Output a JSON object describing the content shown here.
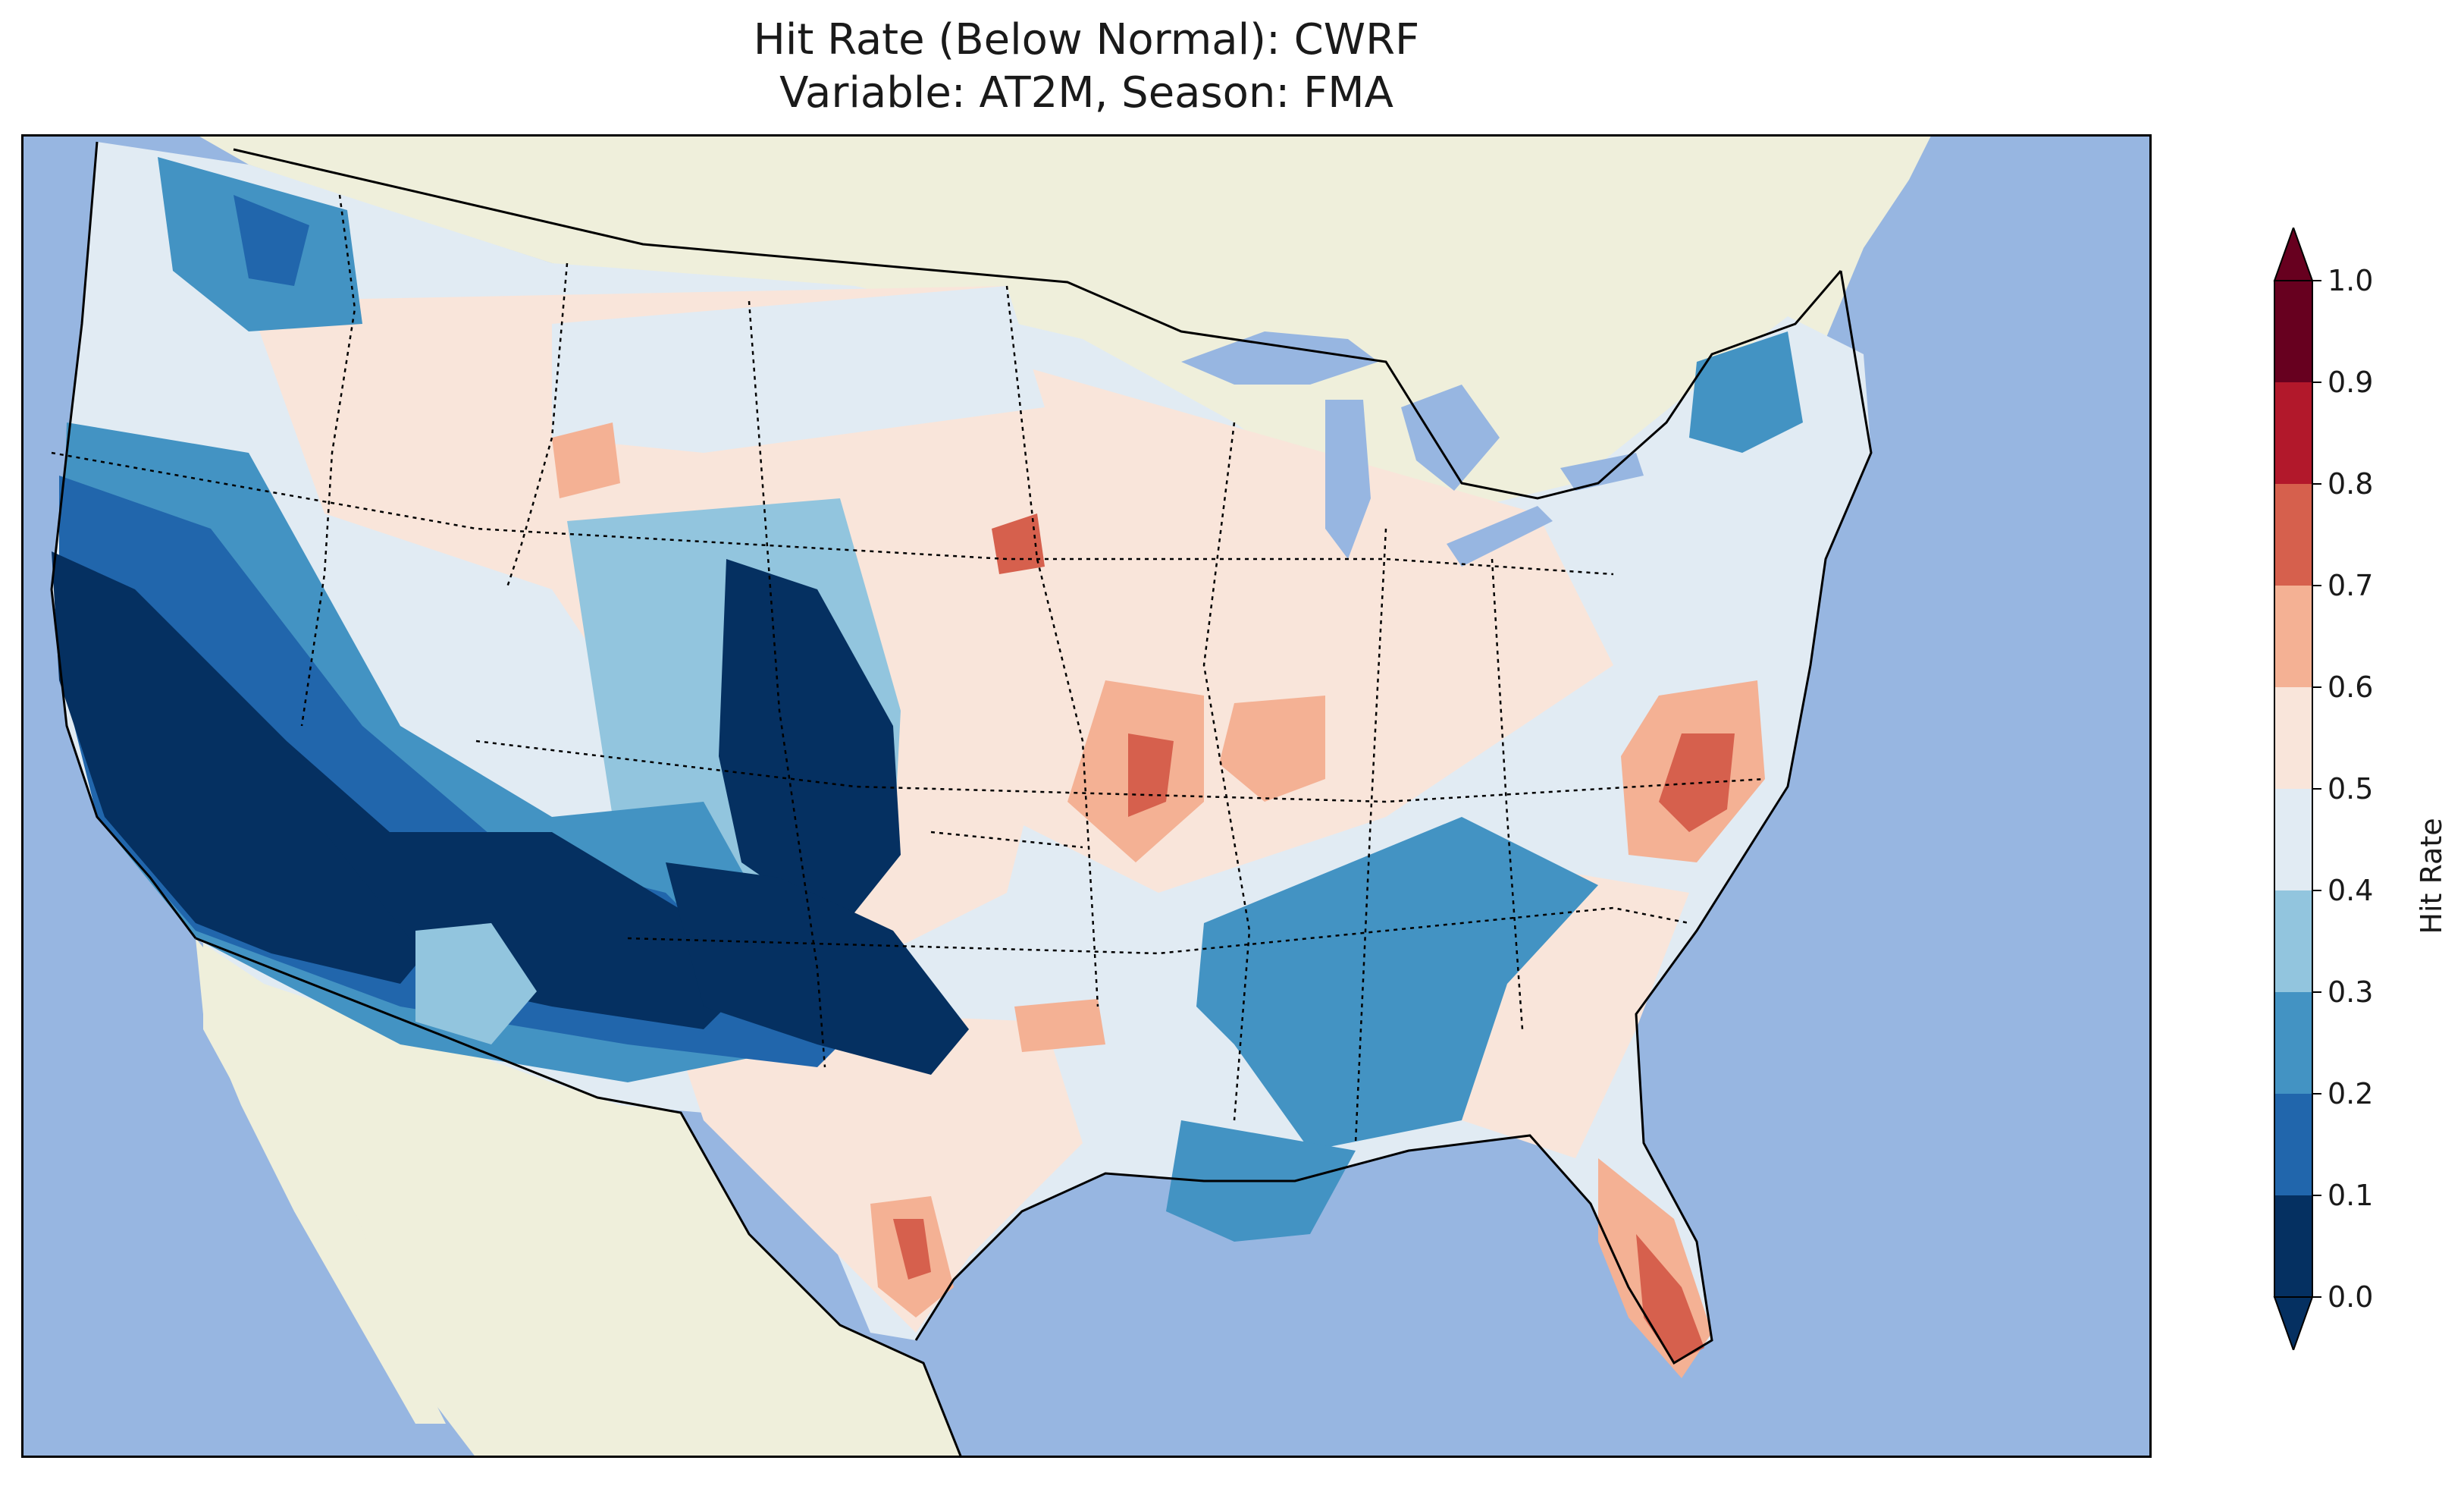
{
  "title": {
    "line1": "Hit Rate (Below Normal): CWRF",
    "line2": "Variable: AT2M, Season: FMA"
  },
  "colors": {
    "ocean": "#97b6e1",
    "land": "#efefdb",
    "border": "#000000"
  },
  "colorbar": {
    "label": "Hit Rate",
    "bins": [
      {
        "from": 0.0,
        "to": 0.1,
        "color": "#053061"
      },
      {
        "from": 0.1,
        "to": 0.2,
        "color": "#2166ac"
      },
      {
        "from": 0.2,
        "to": 0.3,
        "color": "#4393c3"
      },
      {
        "from": 0.3,
        "to": 0.4,
        "color": "#92c5de"
      },
      {
        "from": 0.4,
        "to": 0.5,
        "color": "#e1ebf3"
      },
      {
        "from": 0.5,
        "to": 0.6,
        "color": "#f9e5da"
      },
      {
        "from": 0.6,
        "to": 0.7,
        "color": "#f4b194"
      },
      {
        "from": 0.7,
        "to": 0.8,
        "color": "#d6604d"
      },
      {
        "from": 0.8,
        "to": 0.9,
        "color": "#b2182b"
      },
      {
        "from": 0.9,
        "to": 1.0,
        "color": "#67001f"
      }
    ],
    "under_color": "#053061",
    "over_color": "#67001f",
    "ticks": [
      "0.0",
      "0.1",
      "0.2",
      "0.3",
      "0.4",
      "0.5",
      "0.6",
      "0.7",
      "0.8",
      "0.9",
      "1.0"
    ]
  },
  "regions": [
    {
      "name": "west-coast-california",
      "value": 0.05
    },
    {
      "name": "southwest-desert",
      "value": 0.08
    },
    {
      "name": "colorado-rockies",
      "value": 0.08
    },
    {
      "name": "new-mexico",
      "value": 0.08
    },
    {
      "name": "arizona-uplands",
      "value": 0.25
    },
    {
      "name": "pacific-northwest",
      "value": 0.25
    },
    {
      "name": "tennessee-valley",
      "value": 0.25
    },
    {
      "name": "gulf-louisiana",
      "value": 0.25
    },
    {
      "name": "new-england",
      "value": 0.25
    },
    {
      "name": "northern-plains",
      "value": 0.45
    },
    {
      "name": "central-plains",
      "value": 0.55
    },
    {
      "name": "midwest",
      "value": 0.55
    },
    {
      "name": "southeast",
      "value": 0.55
    },
    {
      "name": "texas",
      "value": 0.55
    },
    {
      "name": "virginia",
      "value": 0.75
    },
    {
      "name": "florida-peninsula",
      "value": 0.75
    },
    {
      "name": "missouri",
      "value": 0.65
    }
  ]
}
